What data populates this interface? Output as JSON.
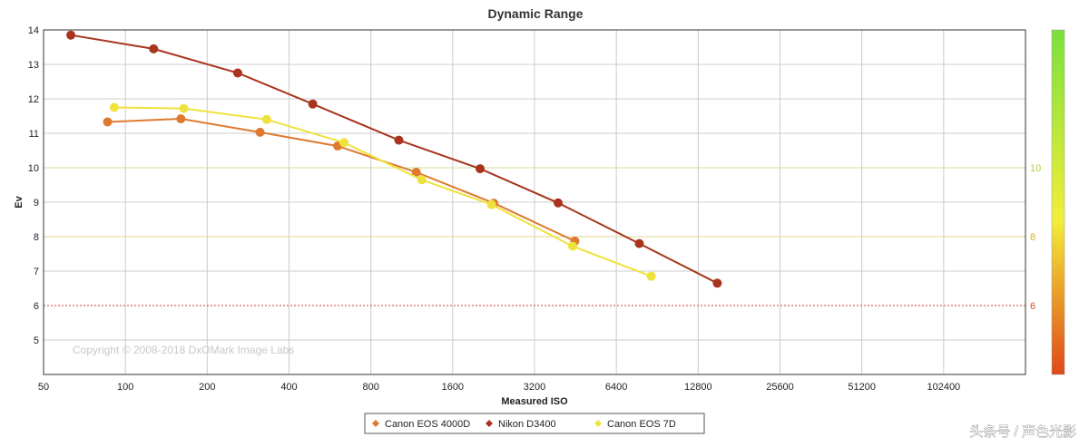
{
  "chart_data": {
    "type": "line",
    "title": "Dynamic Range",
    "xlabel": "Measured ISO",
    "ylabel": "Ev",
    "x_scale": "log2",
    "xlim": [
      50,
      204800
    ],
    "ylim": [
      4,
      14
    ],
    "x_ticks": [
      "50",
      "100",
      "200",
      "400",
      "800",
      "1600",
      "3200",
      "6400",
      "12800",
      "25600",
      "51200",
      "102400"
    ],
    "y_ticks": [
      "5",
      "6",
      "7",
      "8",
      "9",
      "10",
      "11",
      "12",
      "13",
      "14"
    ],
    "right_axis_labels": [
      {
        "value": 10,
        "label": "10",
        "color": "#a8d83a"
      },
      {
        "value": 8,
        "label": "8",
        "color": "#d6b020"
      },
      {
        "value": 6,
        "label": "6",
        "color": "#d85020"
      }
    ],
    "reference_lines": [
      {
        "y": 10,
        "color": "#cce29a",
        "style": "solid"
      },
      {
        "y": 8,
        "color": "#e0d490",
        "style": "solid"
      },
      {
        "y": 6,
        "color": "#d04020",
        "style": "dotted"
      }
    ],
    "color_scale": {
      "top": "#7be03c",
      "middle": "#f2ee3a",
      "bottom": "#e04818"
    },
    "series": [
      {
        "name": "Canon EOS 4000D",
        "color": "#de7a30",
        "x": [
          86,
          160,
          313,
          604,
          1175,
          2267,
          4500
        ],
        "values": [
          11.33,
          11.42,
          11.03,
          10.63,
          9.87,
          8.97,
          7.87
        ]
      },
      {
        "name": "Nikon D3400",
        "color": "#a8341e",
        "x": [
          63,
          127,
          259,
          489,
          1014,
          2018,
          3908,
          7775,
          15050
        ],
        "values": [
          13.85,
          13.45,
          12.75,
          11.85,
          10.8,
          9.97,
          8.98,
          7.8,
          6.65
        ]
      },
      {
        "name": "Canon EOS 7D",
        "color": "#f0e23c",
        "x": [
          91,
          164,
          331,
          637,
          1231,
          2224,
          4420,
          8600
        ],
        "values": [
          11.75,
          11.72,
          11.4,
          10.73,
          9.65,
          8.93,
          7.72,
          6.85
        ]
      }
    ],
    "annotation": "Copyright © 2008-2018 DxOMark Image Labs"
  },
  "watermark": "头条号 / 声色光影"
}
